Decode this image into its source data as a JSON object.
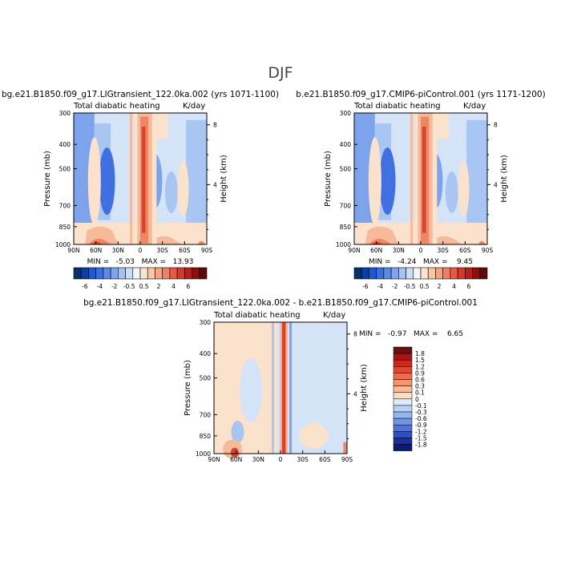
{
  "figure": {
    "season_title": "DJF"
  },
  "chart_data": [
    {
      "type": "heatmap",
      "name": "panel-lig",
      "case_title": "bg.e21.B1850.f09_g17.LIGtransient_122.0ka.002 (yrs 1071-1100)",
      "variable": "Total diabatic heating",
      "units": "K/day",
      "ylabel": "Pressure (mb)",
      "y2label": "Height (km)",
      "xticks": [
        "90N",
        "60N",
        "30N",
        "0",
        "30S",
        "60S",
        "90S"
      ],
      "xtick_lats": [
        90,
        60,
        30,
        0,
        -30,
        -60,
        -90
      ],
      "yticks": [
        300,
        400,
        500,
        700,
        850,
        1000
      ],
      "y2ticks": [
        8,
        4
      ],
      "ylim": [
        1000,
        300
      ],
      "xlim": [
        90,
        -90
      ],
      "min_max_text": "MIN =   -5.03   MAX =   13.93",
      "min": -5.03,
      "max": 13.93
    },
    {
      "type": "heatmap",
      "name": "panel-picontrol",
      "case_title": "b.e21.B1850.f09_g17.CMIP6-piControl.001 (yrs 1171-1200)",
      "variable": "Total diabatic heating",
      "units": "K/day",
      "ylabel": "Pressure (mb)",
      "y2label": "Height (km)",
      "xticks": [
        "90N",
        "60N",
        "30N",
        "0",
        "30S",
        "60S",
        "90S"
      ],
      "xtick_lats": [
        90,
        60,
        30,
        0,
        -30,
        -60,
        -90
      ],
      "yticks": [
        300,
        400,
        500,
        700,
        850,
        1000
      ],
      "y2ticks": [
        8,
        4
      ],
      "ylim": [
        1000,
        300
      ],
      "xlim": [
        90,
        -90
      ],
      "min_max_text": "MIN =   -4.24   MAX =    9.45",
      "min": -4.24,
      "max": 9.45
    },
    {
      "type": "heatmap",
      "name": "panel-difference",
      "case_title": "bg.e21.B1850.f09_g17.LIGtransient_122.0ka.002 - b.e21.B1850.f09_g17.CMIP6-piControl.001",
      "variable": "Total diabatic heating",
      "units": "K/day",
      "ylabel": "Pressure (mb)",
      "y2label": "Height (km)",
      "xticks": [
        "90N",
        "60N",
        "30N",
        "0",
        "30S",
        "60S",
        "90S"
      ],
      "xtick_lats": [
        90,
        60,
        30,
        0,
        -30,
        -60,
        -90
      ],
      "yticks": [
        300,
        400,
        500,
        700,
        850,
        1000
      ],
      "y2ticks": [
        8,
        4
      ],
      "ylim": [
        1000,
        300
      ],
      "xlim": [
        90,
        -90
      ],
      "min_max_text": "MIN =   -0.97   MAX =    6.65",
      "min": -0.97,
      "max": 6.65
    }
  ],
  "colorbar_main": {
    "labels": [
      "-6",
      "-4",
      "-2",
      "-0.5",
      "0.5",
      "2",
      "4",
      "6"
    ],
    "colors": [
      "#08306b",
      "#0a3ea8",
      "#1f56d4",
      "#3a6fe0",
      "#5a8ae6",
      "#7ea4ec",
      "#a6c2f2",
      "#cddcf7",
      "#f2f6fc",
      "#fbe3cf",
      "#f8c6a3",
      "#f4a481",
      "#ee8163",
      "#e45a45",
      "#d33a2b",
      "#b81e1a",
      "#8e0d0d",
      "#5e0a0a"
    ]
  },
  "colorbar_diff": {
    "labels": [
      "1.8",
      "1.5",
      "1.2",
      "0.9",
      "0.6",
      "0.3",
      "0.1",
      "0",
      "-0.1",
      "-0.3",
      "-0.6",
      "-0.9",
      "-1.2",
      "-1.5",
      "-1.8"
    ],
    "colors": [
      "#6e0f0f",
      "#a51414",
      "#c92a1d",
      "#dd4a34",
      "#ea6e4d",
      "#f29571",
      "#f7b999",
      "#fbdcc4",
      "#dfeaf8",
      "#b8d0f4",
      "#93b4ee",
      "#6f95e8",
      "#4d73de",
      "#2e4ec9",
      "#1a2fa6",
      "#0c1a78"
    ]
  },
  "palette": {
    "deep_blue": "#3f6fe0",
    "mid_blue": "#7da3ec",
    "light_blue": "#a9c6f2",
    "pale_blue": "#d4e3f8",
    "pale_orange": "#fbe2cd",
    "light_orange": "#f6b99a",
    "orange": "#ee8563",
    "red": "#d9432f",
    "dark_red": "#8e1313"
  }
}
